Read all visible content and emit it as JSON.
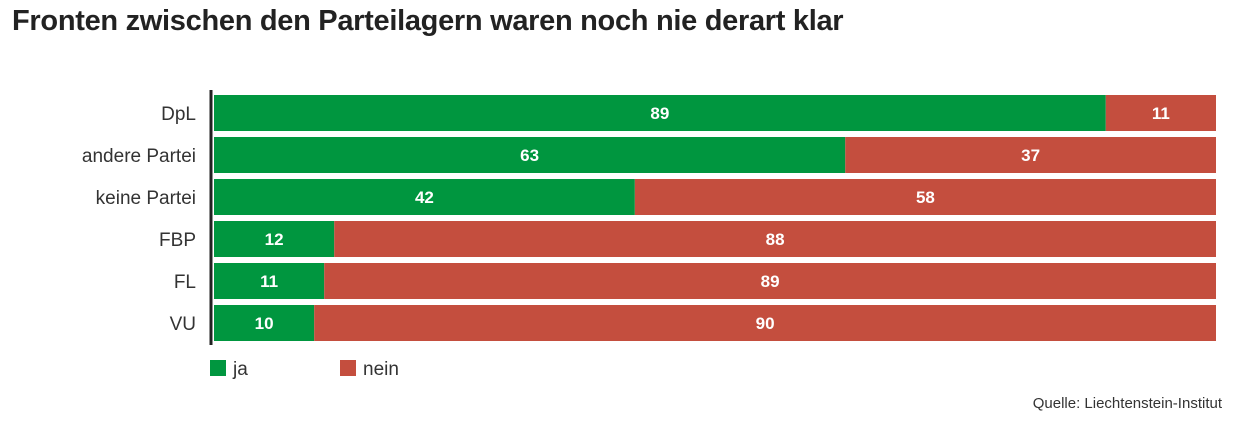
{
  "chart_data": {
    "type": "bar",
    "orientation": "horizontal",
    "stacked": true,
    "title": "Fronten zwischen den Parteilagern waren noch nie derart klar",
    "categories": [
      "DpL",
      "andere Partei",
      "keine Partei",
      "FBP",
      "FL",
      "VU"
    ],
    "series": [
      {
        "name": "ja",
        "color": "#00963f",
        "values": [
          89,
          63,
          42,
          12,
          11,
          10
        ]
      },
      {
        "name": "nein",
        "color": "#c44e3e",
        "values": [
          11,
          37,
          58,
          88,
          89,
          90
        ]
      }
    ],
    "xlim": [
      0,
      100
    ],
    "grid": false,
    "legend": "bottom-left",
    "source": "Quelle: Liechtenstein-Institut"
  }
}
